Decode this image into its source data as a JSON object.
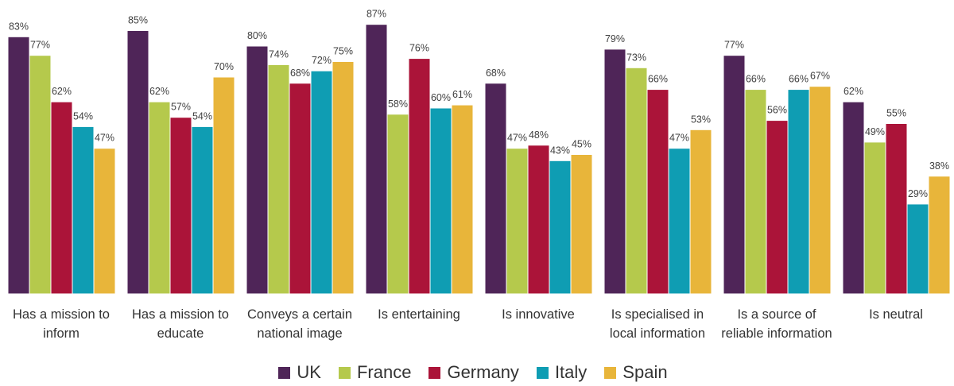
{
  "chart_data": {
    "type": "bar",
    "categories": [
      "Has a mission to inform",
      "Has a mission to educate",
      "Conveys a certain national image",
      "Is entertaining",
      "Is innovative",
      "Is specialised in local information",
      "Is a source of reliable information",
      "Is neutral"
    ],
    "series": [
      {
        "name": "UK",
        "color": "#4f2558",
        "values": [
          83,
          85,
          80,
          87,
          68,
          79,
          77,
          62
        ],
        "value_labels": [
          "83%",
          "85%",
          "80%",
          "87%",
          "68%",
          "79%",
          "77%",
          "62%"
        ]
      },
      {
        "name": "France",
        "color": "#b5c94c",
        "values": [
          77,
          62,
          74,
          58,
          47,
          73,
          66,
          49
        ],
        "value_labels": [
          "77%",
          "62%",
          "74%",
          "58%",
          "47%",
          "73%",
          "66%",
          "49%"
        ]
      },
      {
        "name": "Germany",
        "color": "#ab1439",
        "values": [
          62,
          57,
          68,
          76,
          48,
          66,
          56,
          55
        ],
        "value_labels": [
          "62%",
          "57%",
          "68%",
          "76%",
          "48%",
          "66%",
          "56%",
          "55%"
        ]
      },
      {
        "name": "Italy",
        "color": "#0f9db3",
        "values": [
          54,
          54,
          72,
          60,
          43,
          47,
          66,
          29
        ],
        "value_labels": [
          "54%",
          "54%",
          "72%",
          "60%",
          "43%",
          "47%",
          "66%",
          "29%"
        ]
      },
      {
        "name": "Spain",
        "color": "#e8b53a",
        "values": [
          47,
          70,
          75,
          61,
          45,
          53,
          67,
          38
        ],
        "value_labels": [
          "47%",
          "70%",
          "75%",
          "61%",
          "45%",
          "53%",
          "67%",
          "38%"
        ]
      }
    ],
    "legend": "bottom"
  }
}
